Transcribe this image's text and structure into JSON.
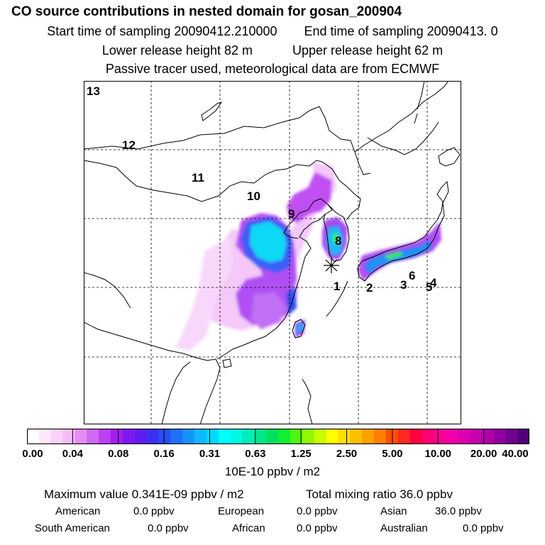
{
  "header": {
    "title": "CO  source contributions in nested domain for gosan_200904",
    "start_label": "Start time of sampling 20090412.210000",
    "end_label": "End time of sampling 20090413.     0",
    "lower_label": "Lower release height   82 m",
    "upper_label": "Upper release height   62 m",
    "tracer_note": "Passive tracer used, meteorological data are from ECMWF"
  },
  "map": {
    "regions": [
      {
        "id": "1",
        "label": "1"
      },
      {
        "id": "2",
        "label": "2"
      },
      {
        "id": "3",
        "label": "3"
      },
      {
        "id": "4",
        "label": "4"
      },
      {
        "id": "5",
        "label": "5"
      },
      {
        "id": "6",
        "label": "6"
      },
      {
        "id": "8",
        "label": "8"
      },
      {
        "id": "9",
        "label": "9"
      },
      {
        "id": "10",
        "label": "10"
      },
      {
        "id": "11",
        "label": "11"
      },
      {
        "id": "12",
        "label": "12"
      },
      {
        "id": "13",
        "label": "13"
      }
    ],
    "receptor_marker": "asterisk-icon"
  },
  "colorbar": {
    "colors": [
      "#ffffff",
      "#fde8fd",
      "#fad2fa",
      "#f7bcf7",
      "#e28ef5",
      "#d06af5",
      "#bc40f5",
      "#a51cf3",
      "#7d18f0",
      "#5d1cf0",
      "#3c30f2",
      "#2a4cf5",
      "#1e70f8",
      "#1494fb",
      "#10b8fe",
      "#00d8ff",
      "#00ffff",
      "#00f7e0",
      "#00ecb8",
      "#00e68c",
      "#00e060",
      "#10ef30",
      "#50f410",
      "#90f800",
      "#c8fc00",
      "#ffff00",
      "#ffe000",
      "#ffc000",
      "#ffa000",
      "#ff7f00",
      "#ff5000",
      "#ff2a20",
      "#ff0040",
      "#ff0070",
      "#fa0090",
      "#ef00a8",
      "#dc00b0",
      "#c800b0",
      "#b000a8",
      "#9000a0",
      "#700090",
      "#500078"
    ],
    "ticks": [
      "0.00",
      "0.04",
      "0.08",
      "0.16",
      "0.31",
      "0.63",
      "1.25",
      "2.50",
      "5.00",
      "10.00",
      "20.00",
      "40.00"
    ],
    "unit": "10E-10 ppbv / m2"
  },
  "stats": {
    "max_label": "Maximum value  0.341E-09 ppbv / m2",
    "total_label": "Total mixing ratio       36.0 ppbv",
    "american": {
      "label": "American",
      "value": "0.0 ppbv"
    },
    "european": {
      "label": "European",
      "value": "0.0 ppbv"
    },
    "asian": {
      "label": "Asian",
      "value": "36.0 ppbv"
    },
    "south_american": {
      "label": "South American",
      "value": "0.0 ppbv"
    },
    "african": {
      "label": "African",
      "value": "0.0 ppbv"
    },
    "australian": {
      "label": "Australian",
      "value": "0.0 ppbv"
    }
  }
}
